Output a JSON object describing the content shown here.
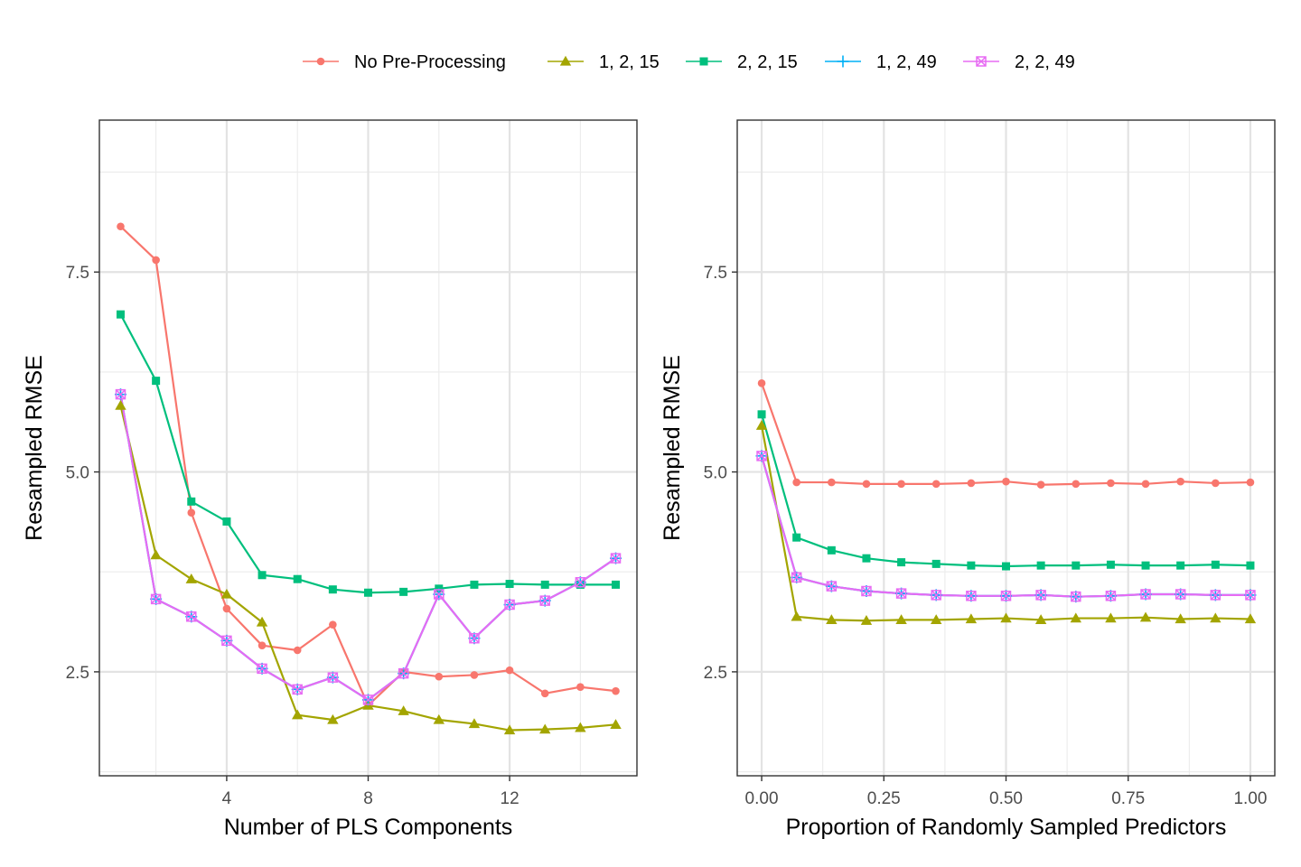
{
  "legend": {
    "position": "top",
    "entries": [
      {
        "label": "No Pre-Processing",
        "color": "#F8766D",
        "shape": "circle"
      },
      {
        "label": "1, 2, 15",
        "color": "#A3A500",
        "shape": "triangle"
      },
      {
        "label": "2, 2, 15",
        "color": "#00BF7D",
        "shape": "square"
      },
      {
        "label": "1, 2, 49",
        "color": "#00B0F6",
        "shape": "plus"
      },
      {
        "label": "2, 2, 49",
        "color": "#E76BF3",
        "shape": "square-x"
      }
    ]
  },
  "chart_data": [
    {
      "type": "line",
      "xlabel": "Number of PLS Components",
      "ylabel": "Resampled RMSE",
      "xlim": [
        0.4,
        15.6
      ],
      "ylim": [
        1.2,
        9.4
      ],
      "x_ticks": [
        4,
        8,
        12
      ],
      "x_tick_labels": [
        "4",
        "8",
        "12"
      ],
      "x_minor": [
        2,
        6,
        10,
        14
      ],
      "y_ticks": [
        2.5,
        5.0,
        7.5
      ],
      "y_tick_labels": [
        "2.5",
        "5.0",
        "7.5"
      ],
      "y_minor": [
        1.25,
        3.75,
        6.25,
        8.75
      ],
      "grid": true,
      "x": [
        1,
        2,
        3,
        4,
        5,
        6,
        7,
        8,
        9,
        10,
        11,
        12,
        13,
        14,
        15
      ],
      "series": [
        {
          "name": "No Pre-Processing",
          "values": [
            8.07,
            7.65,
            4.49,
            3.29,
            2.83,
            2.77,
            3.09,
            2.08,
            2.5,
            2.44,
            2.46,
            2.52,
            2.23,
            2.31,
            2.26
          ]
        },
        {
          "name": "1, 2, 15",
          "values": [
            5.83,
            3.96,
            3.66,
            3.47,
            3.12,
            1.96,
            1.9,
            2.08,
            2.01,
            1.9,
            1.85,
            1.77,
            1.78,
            1.8,
            1.84
          ]
        },
        {
          "name": "2, 2, 15",
          "values": [
            6.97,
            6.14,
            4.63,
            4.38,
            3.71,
            3.66,
            3.53,
            3.49,
            3.5,
            3.54,
            3.59,
            3.6,
            3.59,
            3.59,
            3.59
          ]
        },
        {
          "name": "1, 2, 49",
          "values": [
            5.97,
            3.41,
            3.19,
            2.89,
            2.54,
            2.28,
            2.43,
            2.15,
            2.48,
            3.47,
            2.92,
            3.34,
            3.39,
            3.62,
            3.92
          ]
        },
        {
          "name": "2, 2, 49",
          "values": [
            5.97,
            3.41,
            3.19,
            2.89,
            2.54,
            2.28,
            2.43,
            2.15,
            2.48,
            3.47,
            2.92,
            3.34,
            3.39,
            3.62,
            3.92
          ]
        }
      ]
    },
    {
      "type": "line",
      "xlabel": "Proportion of Randomly Sampled Predictors",
      "ylabel": "Resampled RMSE",
      "xlim": [
        -0.05,
        1.05
      ],
      "ylim": [
        1.2,
        9.4
      ],
      "x_ticks": [
        0.0,
        0.25,
        0.5,
        0.75,
        1.0
      ],
      "x_tick_labels": [
        "0.00",
        "0.25",
        "0.50",
        "0.75",
        "1.00"
      ],
      "x_minor": [
        0.125,
        0.375,
        0.625,
        0.875
      ],
      "y_ticks": [
        2.5,
        5.0,
        7.5
      ],
      "y_tick_labels": [
        "2.5",
        "5.0",
        "7.5"
      ],
      "y_minor": [
        1.25,
        3.75,
        6.25,
        8.75
      ],
      "grid": true,
      "x": [
        0.0,
        0.0714,
        0.1429,
        0.2143,
        0.2857,
        0.3571,
        0.4286,
        0.5,
        0.5714,
        0.6429,
        0.7143,
        0.7857,
        0.8571,
        0.9286,
        1.0
      ],
      "series": [
        {
          "name": "No Pre-Processing",
          "values": [
            6.11,
            4.87,
            4.87,
            4.85,
            4.85,
            4.85,
            4.86,
            4.88,
            4.84,
            4.85,
            4.86,
            4.85,
            4.88,
            4.86,
            4.87
          ]
        },
        {
          "name": "1, 2, 15",
          "values": [
            5.58,
            3.19,
            3.15,
            3.14,
            3.15,
            3.15,
            3.16,
            3.17,
            3.15,
            3.17,
            3.17,
            3.18,
            3.16,
            3.17,
            3.16
          ]
        },
        {
          "name": "2, 2, 15",
          "values": [
            5.72,
            4.18,
            4.02,
            3.92,
            3.87,
            3.85,
            3.83,
            3.82,
            3.83,
            3.83,
            3.84,
            3.83,
            3.83,
            3.84,
            3.83
          ]
        },
        {
          "name": "1, 2, 49",
          "values": [
            5.2,
            3.68,
            3.57,
            3.51,
            3.48,
            3.46,
            3.45,
            3.45,
            3.46,
            3.44,
            3.45,
            3.47,
            3.47,
            3.46,
            3.46
          ]
        },
        {
          "name": "2, 2, 49",
          "values": [
            5.2,
            3.68,
            3.57,
            3.51,
            3.48,
            3.46,
            3.45,
            3.45,
            3.46,
            3.44,
            3.45,
            3.47,
            3.47,
            3.46,
            3.46
          ]
        }
      ]
    }
  ]
}
